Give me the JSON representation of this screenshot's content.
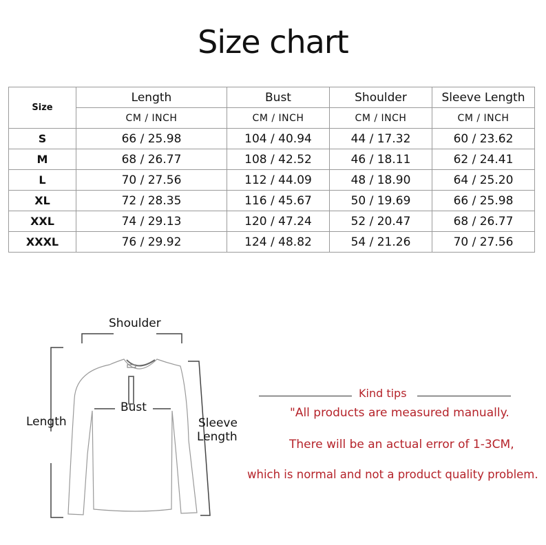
{
  "title": "Size chart",
  "table": {
    "size_header": "Size",
    "columns": [
      "Length",
      "Bust",
      "Shoulder",
      "Sleeve Length"
    ],
    "unit_label": "CM  /  INCH",
    "rows": [
      {
        "size": "S",
        "values": [
          "66 / 25.98",
          "104 / 40.94",
          "44 / 17.32",
          "60 / 23.62"
        ]
      },
      {
        "size": "M",
        "values": [
          "68 / 26.77",
          "108 / 42.52",
          "46 / 18.11",
          "62 / 24.41"
        ]
      },
      {
        "size": "L",
        "values": [
          "70 / 27.56",
          "112 / 44.09",
          "48 / 18.90",
          "64 / 25.20"
        ]
      },
      {
        "size": "XL",
        "values": [
          "72 / 28.35",
          "116 / 45.67",
          "50 / 19.69",
          "66 / 25.98"
        ]
      },
      {
        "size": "XXL",
        "values": [
          "74 / 29.13",
          "120 / 47.24",
          "52 / 20.47",
          "68 / 26.77"
        ]
      },
      {
        "size": "XXXL",
        "values": [
          "76 / 29.92",
          "124 / 48.82",
          "54 / 21.26",
          "70 / 27.56"
        ]
      }
    ]
  },
  "diagram": {
    "shoulder": "Shoulder",
    "bust": "Bust",
    "length": "Length",
    "sleeve_1": "Sleeve",
    "sleeve_2": "Length"
  },
  "tips": {
    "heading": "Kind tips",
    "line1": "\"All products are measured manually.",
    "line2": "There will be an actual error of 1-3CM,",
    "line3": "which is normal and not a product quality problem.",
    "color": "#b5232a"
  }
}
